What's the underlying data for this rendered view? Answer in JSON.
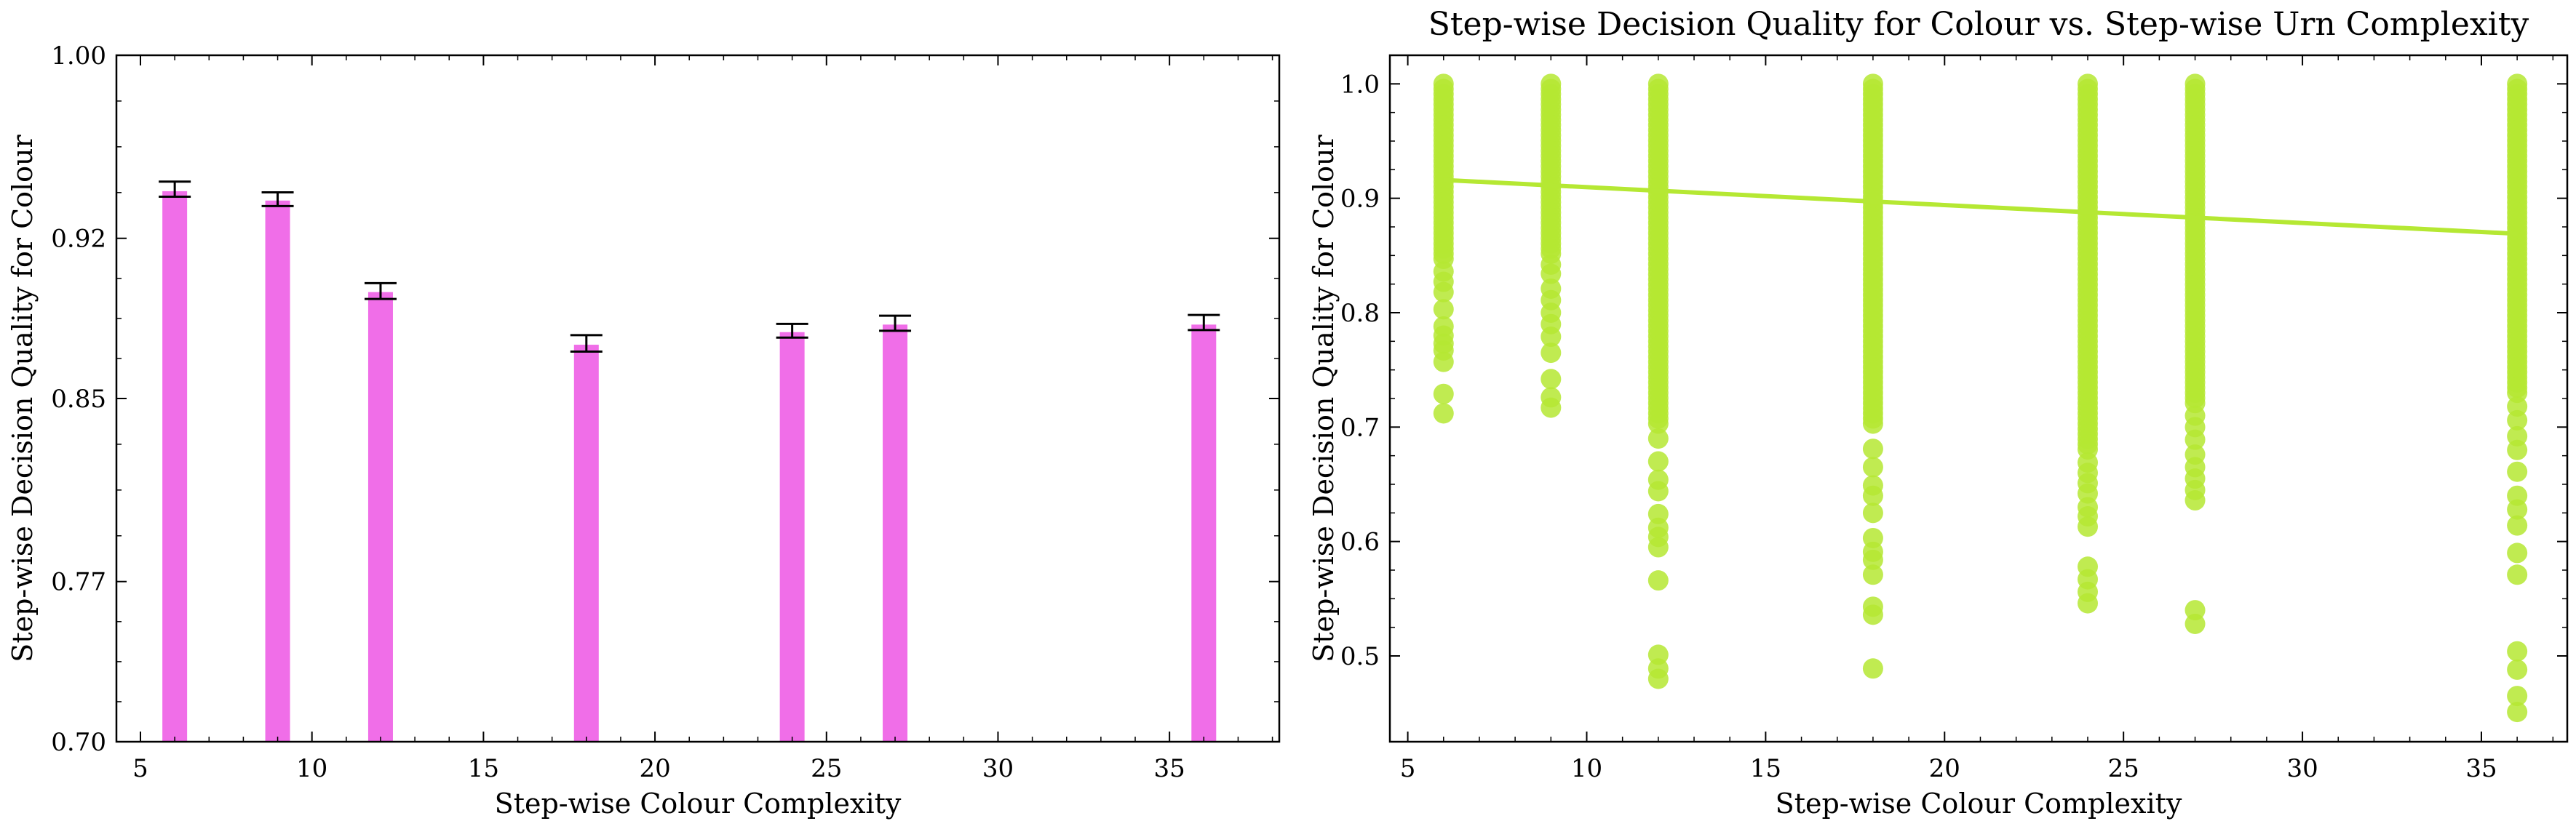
{
  "chart_data": [
    {
      "type": "bar",
      "title": "",
      "xlabel": "Step-wise Colour Complexity",
      "ylabel": "Step-wise Decision Quality for Colour",
      "xlim": [
        4.3,
        38.2
      ],
      "ylim": [
        0.7,
        1.0
      ],
      "xticks": [
        5,
        10,
        15,
        20,
        25,
        30,
        35
      ],
      "yticks": [
        0.7,
        0.77,
        0.85,
        0.92,
        1.0
      ],
      "ytick_labels": [
        "0.70",
        "0.77",
        "0.85",
        "0.92",
        "1.00"
      ],
      "bar_color": "#f06ee8",
      "errorbar_color": "#000000",
      "bars": [
        {
          "x": 6,
          "value": 0.9406,
          "err_low": 0.0024,
          "err_high": 0.0042
        },
        {
          "x": 9,
          "value": 0.9365,
          "err_low": 0.0024,
          "err_high": 0.0036
        },
        {
          "x": 12,
          "value": 0.8965,
          "err_low": 0.003,
          "err_high": 0.0039
        },
        {
          "x": 18,
          "value": 0.8735,
          "err_low": 0.003,
          "err_high": 0.0042
        },
        {
          "x": 24,
          "value": 0.879,
          "err_low": 0.0024,
          "err_high": 0.0036
        },
        {
          "x": 27,
          "value": 0.8823,
          "err_low": 0.0027,
          "err_high": 0.0039
        },
        {
          "x": 36,
          "value": 0.8823,
          "err_low": 0.0024,
          "err_high": 0.0042
        }
      ]
    },
    {
      "type": "scatter",
      "title": "Step-wise Decision Quality for Colour vs. Step-wise Urn Complexity",
      "xlabel": "Step-wise Colour Complexity",
      "ylabel": "Step-wise Decision Quality for Colour",
      "xlim": [
        4.5,
        37.4
      ],
      "ylim": [
        0.425,
        1.025
      ],
      "xticks": [
        5,
        10,
        15,
        20,
        25,
        30,
        35
      ],
      "yticks": [
        0.5,
        0.6,
        0.7,
        0.8,
        0.9,
        1.0
      ],
      "ytick_labels": [
        "0.5",
        "0.6",
        "0.7",
        "0.8",
        "0.9",
        "1.0"
      ],
      "point_color": "#b5e833",
      "regression": {
        "x": [
          6,
          36
        ],
        "y": [
          0.916,
          0.869
        ],
        "color": "#b5e833"
      },
      "columns": [
        {
          "x": 6,
          "dense_range": [
            0.845,
            1.0
          ],
          "outliers": [
            0.712,
            0.729,
            0.757,
            0.767,
            0.773,
            0.78,
            0.788,
            0.803,
            0.818,
            0.827,
            0.836
          ]
        },
        {
          "x": 9,
          "dense_range": [
            0.85,
            1.0
          ],
          "outliers": [
            0.717,
            0.726,
            0.742,
            0.765,
            0.779,
            0.79,
            0.8,
            0.811,
            0.821,
            0.834,
            0.842
          ]
        },
        {
          "x": 12,
          "dense_range": [
            0.7,
            1.0
          ],
          "outliers": [
            0.48,
            0.489,
            0.501,
            0.566,
            0.595,
            0.604,
            0.612,
            0.624,
            0.644,
            0.654,
            0.67,
            0.69
          ]
        },
        {
          "x": 18,
          "dense_range": [
            0.7,
            1.0
          ],
          "outliers": [
            0.489,
            0.536,
            0.543,
            0.571,
            0.584,
            0.591,
            0.603,
            0.625,
            0.64,
            0.649,
            0.665,
            0.681
          ]
        },
        {
          "x": 24,
          "dense_range": [
            0.68,
            1.0
          ],
          "outliers": [
            0.546,
            0.556,
            0.567,
            0.578,
            0.613,
            0.622,
            0.63,
            0.642,
            0.651,
            0.66,
            0.669
          ]
        },
        {
          "x": 27,
          "dense_range": [
            0.72,
            1.0
          ],
          "outliers": [
            0.528,
            0.54,
            0.636,
            0.645,
            0.655,
            0.665,
            0.676,
            0.689,
            0.7,
            0.71
          ]
        },
        {
          "x": 36,
          "dense_range": [
            0.73,
            1.0
          ],
          "outliers": [
            0.451,
            0.465,
            0.488,
            0.504,
            0.571,
            0.59,
            0.614,
            0.628,
            0.64,
            0.661,
            0.68,
            0.692,
            0.706,
            0.718
          ]
        }
      ]
    }
  ]
}
